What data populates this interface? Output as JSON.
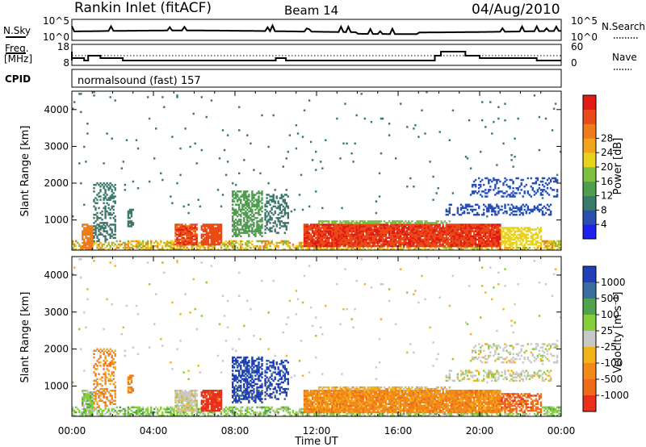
{
  "header": {
    "title": "Rankin Inlet (fitACF)",
    "beam": "Beam 14",
    "date": "04/Aug/2010"
  },
  "noise_panel": {
    "left_label": "N.Sky",
    "left_ticks": [
      "10^5",
      "10^0"
    ],
    "right_label": "N.Search",
    "right_ticks": [
      "10^5",
      "10^0"
    ]
  },
  "freq_panel": {
    "left_label_line1": "Freq.",
    "left_label_line2": "[MHz]",
    "left_ticks": [
      "18",
      "8"
    ],
    "right_label": "Nave",
    "right_ticks": [
      "60",
      "0"
    ]
  },
  "cpid_panel": {
    "label": "CPID",
    "program": "normalsound (fast) 157"
  },
  "chart_data": [
    {
      "type": "heatmap",
      "name": "power",
      "ylabel": "Slant Range [km]",
      "ylim": [
        180,
        4500
      ],
      "y_ticks": [
        "1000",
        "2000",
        "3000",
        "4000"
      ],
      "x_range_hours": [
        0,
        24
      ],
      "x_ticks": [
        "00:00",
        "04:00",
        "08:00",
        "12:00",
        "16:00",
        "20:00",
        "00:00"
      ],
      "colorbar": {
        "label": "Power [dB]",
        "ticks": [
          "4",
          "8",
          "12",
          "16",
          "20",
          "24",
          "28"
        ],
        "colors": [
          "#1f1fee",
          "#2b4fb0",
          "#3a7a6a",
          "#4f9e4f",
          "#7fbf3f",
          "#e9d21b",
          "#f2a51a",
          "#f07b19",
          "#ea4a17",
          "#e21b17"
        ]
      }
    },
    {
      "type": "heatmap",
      "name": "velocity",
      "ylabel": "Slant Range [km]",
      "ylim": [
        180,
        4500
      ],
      "y_ticks": [
        "1000",
        "2000",
        "3000",
        "4000"
      ],
      "x_range_hours": [
        0,
        24
      ],
      "x_ticks": [
        "00:00",
        "04:00",
        "08:00",
        "12:00",
        "16:00",
        "20:00",
        "00:00"
      ],
      "xlabel": "Time UT",
      "colorbar": {
        "label": "Velocity [m s⁻¹]",
        "ticks": [
          "1000",
          "500",
          "100",
          "25",
          "-25",
          "-100",
          "-500",
          "-1000"
        ],
        "colors": [
          "#1e3fb8",
          "#3a6ea0",
          "#4fa34f",
          "#86cf3a",
          "#c8c8c8",
          "#f2b21a",
          "#f28a1a",
          "#ef6a1a",
          "#e8301a"
        ]
      }
    }
  ]
}
